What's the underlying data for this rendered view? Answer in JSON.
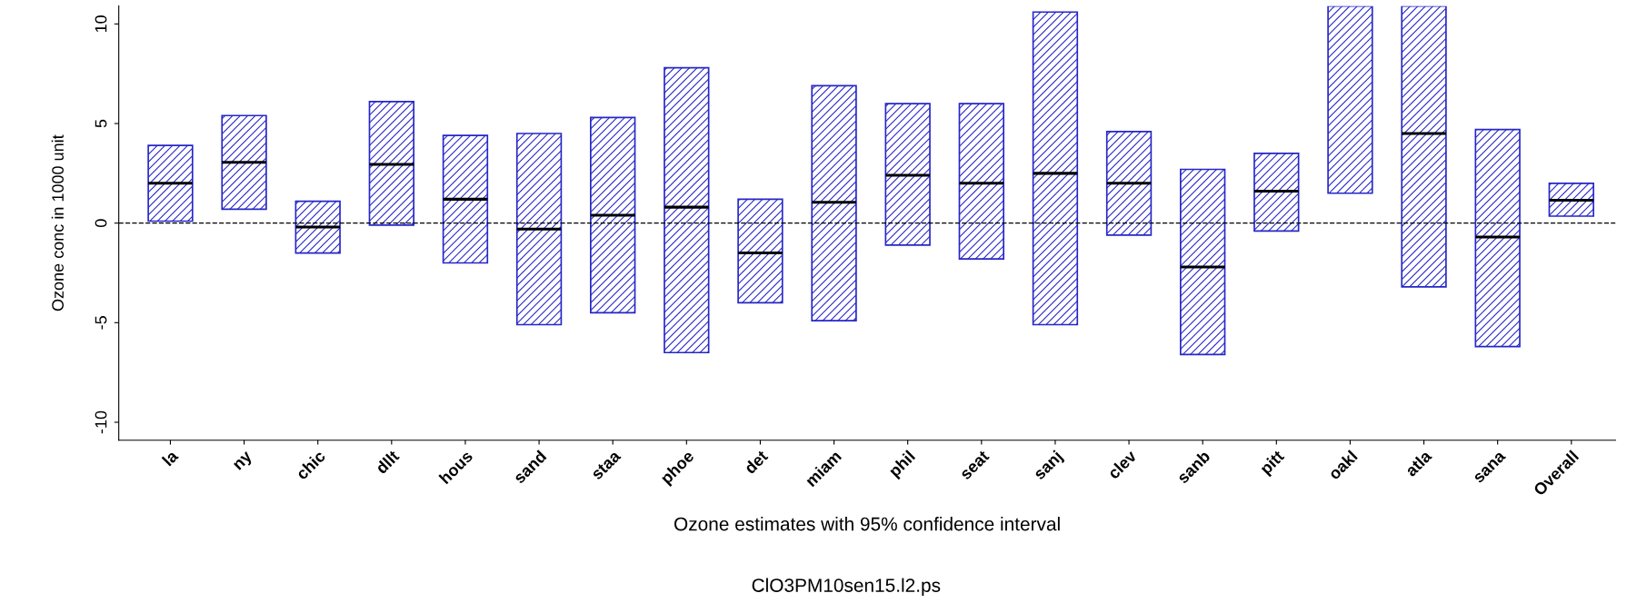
{
  "chart_data": {
    "type": "box",
    "xlabel": "Ozone estimates with 95% confidence interval",
    "ylabel": "Ozone conc in 1000 unit",
    "annotations": [
      "ClO3PM10sen15.l2.ps"
    ],
    "categories": [
      "la",
      "ny",
      "chic",
      "dllt",
      "hous",
      "sand",
      "staa",
      "phoe",
      "det",
      "miam",
      "phil",
      "seat",
      "sanj",
      "clev",
      "sanb",
      "pitt",
      "oakl",
      "atla",
      "sana",
      "Overall"
    ],
    "color": "#2626c8",
    "boxes": [
      {
        "low": 0.1,
        "q1": 0.1,
        "median": 2.0,
        "q3": 3.9,
        "high": 3.9
      },
      {
        "low": 0.7,
        "q1": 0.7,
        "median": 3.05,
        "q3": 5.4,
        "high": 5.4
      },
      {
        "low": -1.5,
        "q1": -1.5,
        "median": -0.2,
        "q3": 1.1,
        "high": 1.1
      },
      {
        "low": -0.1,
        "q1": -0.1,
        "median": 2.95,
        "q3": 6.1,
        "high": 6.1
      },
      {
        "low": -2.0,
        "q1": -2.0,
        "median": 1.2,
        "q3": 4.4,
        "high": 4.4
      },
      {
        "low": -5.1,
        "q1": -5.1,
        "median": -0.3,
        "q3": 4.5,
        "high": 4.5
      },
      {
        "low": -4.5,
        "q1": -4.5,
        "median": 0.4,
        "q3": 5.3,
        "high": 5.3
      },
      {
        "low": -6.5,
        "q1": -6.5,
        "median": 0.8,
        "q3": 7.8,
        "high": 7.8
      },
      {
        "low": -4.0,
        "q1": -4.0,
        "median": -1.5,
        "q3": 1.2,
        "high": 1.2
      },
      {
        "low": -4.9,
        "q1": -4.9,
        "median": 1.05,
        "q3": 6.9,
        "high": 6.9
      },
      {
        "low": -1.1,
        "q1": -1.1,
        "median": 2.4,
        "q3": 6.0,
        "high": 6.0
      },
      {
        "low": -1.8,
        "q1": -1.8,
        "median": 2.0,
        "q3": 6.0,
        "high": 6.0
      },
      {
        "low": -5.1,
        "q1": -5.1,
        "median": 2.5,
        "q3": 10.6,
        "high": 10.6
      },
      {
        "low": -0.6,
        "q1": -0.6,
        "median": 2.0,
        "q3": 4.6,
        "high": 4.6
      },
      {
        "low": -6.6,
        "q1": -6.6,
        "median": -2.2,
        "q3": 2.7,
        "high": 2.7
      },
      {
        "low": -0.4,
        "q1": -0.4,
        "median": 1.6,
        "q3": 3.5,
        "high": 3.5
      },
      {
        "low": 1.5,
        "q1": 1.5,
        "median": null,
        "q3": 10.9,
        "high": 10.9
      },
      {
        "low": -3.2,
        "q1": -3.2,
        "median": 4.5,
        "q3": 10.9,
        "high": 10.9
      },
      {
        "low": -6.2,
        "q1": -6.2,
        "median": -0.7,
        "q3": 4.7,
        "high": 4.7
      },
      {
        "low": 0.35,
        "q1": 0.35,
        "median": 1.15,
        "q3": 2.0,
        "high": 2.0
      }
    ],
    "ylim": [
      -10.9,
      10.9
    ],
    "yticks": [
      -10,
      -5,
      0,
      5,
      10
    ],
    "ref_lines": [
      {
        "axis": "y",
        "value": 0,
        "line_style": "dashed",
        "color": "#000000"
      }
    ],
    "grid": false
  }
}
